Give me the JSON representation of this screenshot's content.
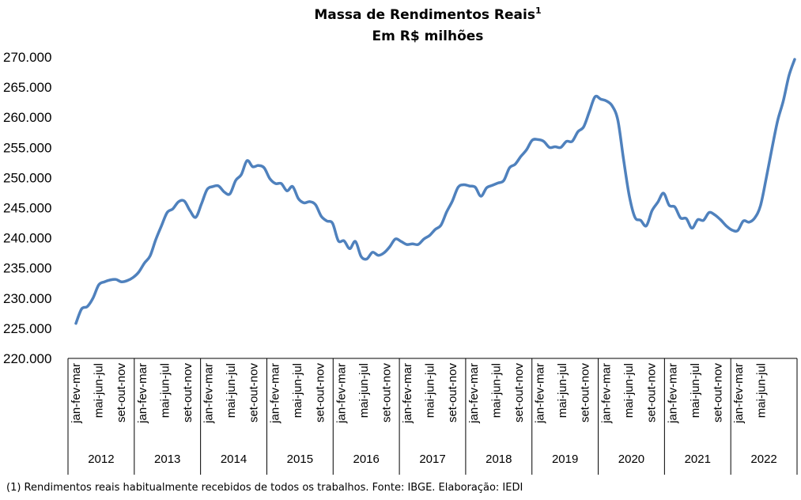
{
  "chart_data": {
    "type": "line",
    "title": "Massa de Rendimentos Reais",
    "title_superscript": "1",
    "subtitle": "Em R$ milhões",
    "ylim": [
      220000,
      270000
    ],
    "y_ticks": [
      "220.000",
      "225.000",
      "230.000",
      "235.000",
      "240.000",
      "245.000",
      "250.000",
      "255.000",
      "260.000",
      "265.000",
      "270.000"
    ],
    "x_labels": [
      "jan-fev-mar",
      "mai-jun-jul",
      "set-out-nov"
    ],
    "years": [
      "2012",
      "2013",
      "2014",
      "2015",
      "2016",
      "2017",
      "2018",
      "2019",
      "2020",
      "2021",
      "2022"
    ],
    "line_color": "#4F81BD",
    "series": [
      {
        "values": [
          225800,
          228200,
          228600,
          230000,
          232200,
          232700,
          233000,
          233100,
          232700,
          232900,
          233400,
          234300,
          235800,
          237000,
          239700,
          242000,
          244200,
          244800,
          246000,
          246100,
          244500,
          243400,
          245600,
          248000,
          248500,
          248600,
          247600,
          247300,
          249500,
          250500,
          252800,
          251800,
          252000,
          251600,
          249800,
          249000,
          249000,
          247800,
          248500,
          246500,
          245800,
          246000,
          245500,
          243600,
          242800,
          242400,
          239500,
          239500,
          238200,
          239400,
          236900,
          236500,
          237600,
          237100,
          237500,
          238500,
          239800,
          239400,
          238900,
          239000,
          238900,
          239800,
          240400,
          241400,
          242100,
          244300,
          246100,
          248400,
          248800,
          248600,
          248400,
          246900,
          248300,
          248700,
          249100,
          249500,
          251600,
          252200,
          253500,
          254600,
          256200,
          256300,
          256000,
          255000,
          255100,
          255000,
          256000,
          256000,
          257600,
          258400,
          260900,
          263400,
          263000,
          262700,
          261900,
          259500,
          253000,
          247000,
          243400,
          242900,
          242000,
          244500,
          245900,
          247400,
          245400,
          245100,
          243300,
          243200,
          241600,
          243000,
          242900,
          244200,
          243800,
          243000,
          242000,
          241300,
          241200,
          242800,
          242600,
          243300,
          245300,
          249800,
          254700,
          259400,
          262700,
          266900,
          269600
        ]
      }
    ],
    "footnote": "(1) Rendimentos reais habitualmente recebidos de todos os trabalhos. Fonte: IBGE. Elaboração: IEDI"
  }
}
